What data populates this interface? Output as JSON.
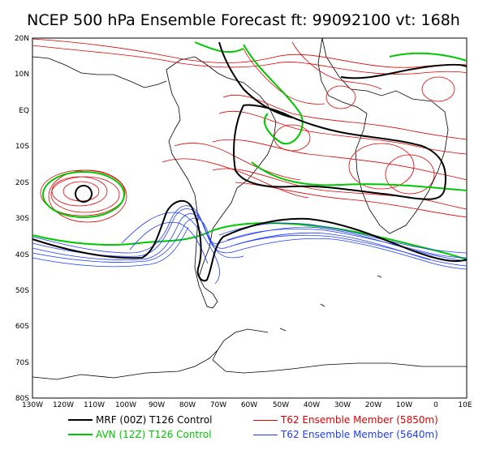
{
  "title": "NCEP 500 hPa Ensemble Forecast  ft: 99092100 vt: 168h",
  "lat_labels": [
    "20N",
    "10N",
    "EQ",
    "10S",
    "20S",
    "30S",
    "40S",
    "50S",
    "60S",
    "70S",
    "80S"
  ],
  "lon_labels": [
    "130W",
    "120W",
    "110W",
    "100W",
    "90W",
    "80W",
    "70W",
    "60W",
    "50W",
    "40W",
    "30W",
    "20W",
    "10W",
    "0",
    "10E"
  ],
  "legend": [
    {
      "label": "MRF (00Z) T126 Control",
      "color": "#000000"
    },
    {
      "label": "AVN (12Z) T126 Control",
      "color": "#00c800"
    },
    {
      "label": "T62 Ensemble Member (5850m)",
      "color": "#e00000"
    },
    {
      "label": "T62 Ensemble Member (5640m)",
      "color": "#1e3cff"
    }
  ]
}
